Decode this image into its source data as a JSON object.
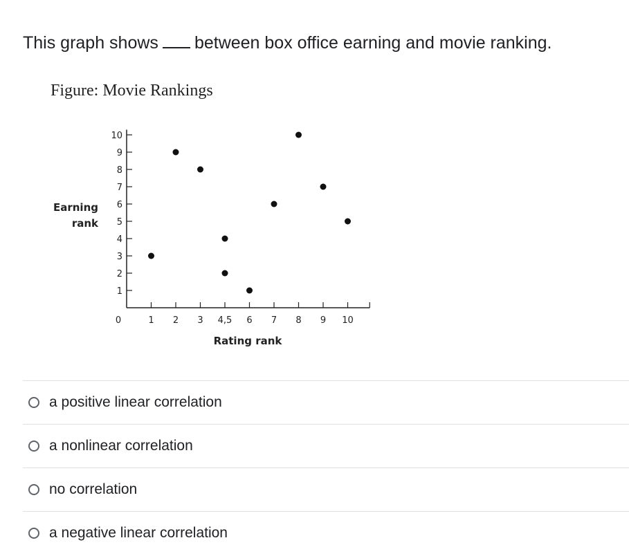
{
  "question": {
    "before": "This graph shows",
    "after": "between box office earning and movie ranking."
  },
  "chart_data": {
    "type": "scatter",
    "title": "Figure: Movie Rankings",
    "xlabel": "Rating rank",
    "ylabel_lines": [
      "Earning",
      "rank"
    ],
    "x_tick_labels": [
      "0",
      "1",
      "2",
      "3",
      "4,5",
      "6",
      "7",
      "8",
      "9",
      "10"
    ],
    "x_tick_positions": [
      0,
      1,
      2,
      3,
      4,
      5,
      6,
      7,
      8,
      9
    ],
    "y_tick_labels": [
      "1",
      "2",
      "3",
      "4",
      "5",
      "6",
      "7",
      "8",
      "9",
      "10"
    ],
    "xlim": [
      0,
      9.5
    ],
    "ylim": [
      0,
      10.3
    ],
    "points": [
      {
        "x": 1,
        "y": 3
      },
      {
        "x": 2,
        "y": 9
      },
      {
        "x": 3,
        "y": 8
      },
      {
        "x": 4,
        "y": 4
      },
      {
        "x": 4,
        "y": 2
      },
      {
        "x": 5,
        "y": 1
      },
      {
        "x": 6,
        "y": 6
      },
      {
        "x": 7,
        "y": 10
      },
      {
        "x": 8,
        "y": 7
      },
      {
        "x": 9,
        "y": 5
      }
    ]
  },
  "options": [
    "a positive linear correlation",
    "a nonlinear correlation",
    "no correlation",
    "a negative linear correlation"
  ]
}
